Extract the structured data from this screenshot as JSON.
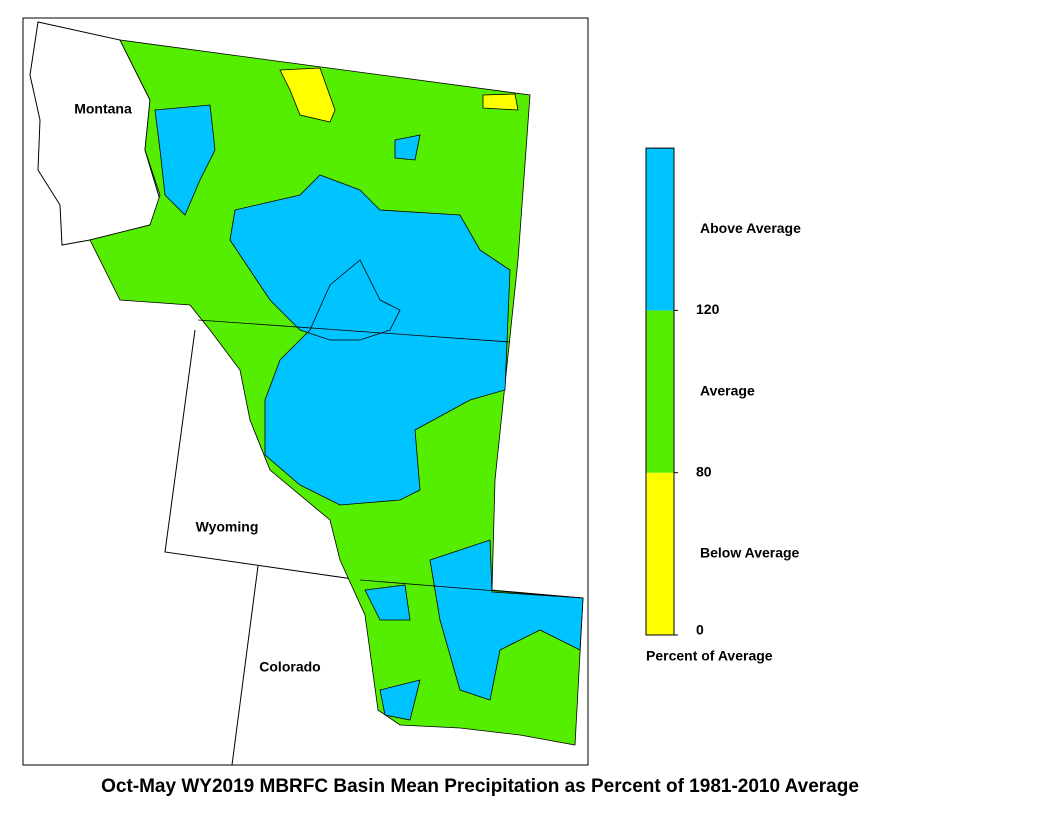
{
  "map": {
    "states": [
      "Montana",
      "Wyoming",
      "Colorado"
    ]
  },
  "legend": {
    "title": "Percent of Average",
    "classes": [
      {
        "label": "Below Average",
        "color": "#ffff00"
      },
      {
        "label": "Average",
        "color": "#55ee00"
      },
      {
        "label": "Above Average",
        "color": "#00c4ff"
      }
    ],
    "ticks": [
      0,
      80,
      120
    ]
  },
  "title": "Oct-May WY2019 MBRFC Basin Mean Precipitation as Percent of 1981-2010 Average"
}
